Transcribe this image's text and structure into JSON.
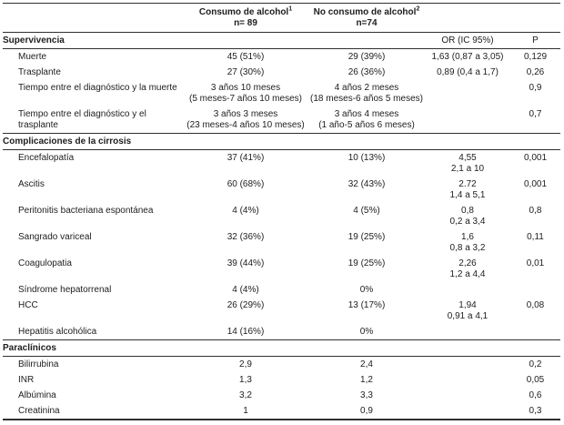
{
  "table": {
    "columns": {
      "group1": {
        "title": "Consumo de alcohol",
        "footnote": "1",
        "n": "n= 89"
      },
      "group2": {
        "title": "No consumo de alcohol",
        "footnote": "2",
        "n": "n=74"
      },
      "or_header": "OR (IC 95%)",
      "p_header": "P"
    },
    "sections": [
      {
        "title": "Supervivencia",
        "stat_headers": true,
        "rows": [
          {
            "label": "Muerte",
            "c1": "45 (51%)",
            "c2": "29 (39%)",
            "or": "1,63 (0,87 a 3,05)",
            "p": "0,129"
          },
          {
            "label": "Trasplante",
            "c1": "27 (30%)",
            "c2": "26 (36%)",
            "or": "0,89 (0,4 a 1,7)",
            "p": "0,26"
          },
          {
            "label": "Tiempo entre el diagnóstico y la muerte",
            "c1": "3 años 10 meses",
            "c1b": "(5 meses-7 años 10 meses)",
            "c2": "4 años 2 meses",
            "c2b": "(18 meses-6 años 5 meses)",
            "p": "0,9"
          },
          {
            "label": "Tiempo entre el diagnóstico y el trasplante",
            "c1": "3 años 3 meses",
            "c1b": "(23 meses-4 años 10 meses)",
            "c2": "3 años 4 meses",
            "c2b": "(1 año-5 años 6 meses)",
            "p": "0,7"
          }
        ]
      },
      {
        "title": "Complicaciones de la cirrosis",
        "stat_headers": false,
        "rows": [
          {
            "label": "Encefalopatía",
            "c1": "37 (41%)",
            "c2": "10 (13%)",
            "or": "4,55",
            "orb": "2,1 a 10",
            "p": "0,001"
          },
          {
            "label": "Ascitis",
            "c1": "60 (68%)",
            "c2": "32 (43%)",
            "or": "2.72",
            "orb": "1,4 a 5,1",
            "p": "0,001"
          },
          {
            "label": "Peritonitis bacteriana espontánea",
            "c1": "4 (4%)",
            "c2": "4 (5%)",
            "or": "0,8",
            "orb": "0,2 a 3,4",
            "p": "0,8"
          },
          {
            "label": "Sangrado variceal",
            "c1": "32 (36%)",
            "c2": "19 (25%)",
            "or": "1,6",
            "orb": "0,8 a 3,2",
            "p": "0,11"
          },
          {
            "label": "Coagulopatia",
            "c1": "39 (44%)",
            "c2": "19 (25%)",
            "or": "2,26",
            "orb": "1,2 a 4,4",
            "p": "0,01"
          },
          {
            "label": "Síndrome hepatorrenal",
            "c1": "4 (4%)",
            "c2": "0%"
          },
          {
            "label": "HCC",
            "c1": "26 (29%)",
            "c2": "13 (17%)",
            "or": "1,94",
            "orb": "0,91 a 4,1",
            "p": "0,08"
          },
          {
            "label": "Hepatitis alcohólica",
            "c1": "14 (16%)",
            "c2": "0%"
          }
        ]
      },
      {
        "title": "Paraclínicos",
        "stat_headers": false,
        "rows": [
          {
            "label": "Bilirrubina",
            "c1": "2,9",
            "c2": "2,4",
            "p": "0,2"
          },
          {
            "label": "INR",
            "c1": "1,3",
            "c2": "1,2",
            "p": "0,05"
          },
          {
            "label": "Albúmina",
            "c1": "3,2",
            "c2": "3,3",
            "p": "0,6"
          },
          {
            "label": "Creatinina",
            "c1": "1",
            "c2": "0,9",
            "p": "0,3"
          }
        ]
      }
    ]
  }
}
